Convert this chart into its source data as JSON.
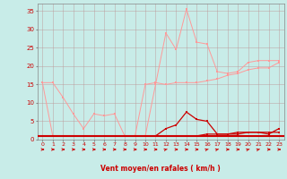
{
  "x": [
    0,
    1,
    2,
    3,
    4,
    5,
    6,
    7,
    8,
    9,
    10,
    11,
    12,
    13,
    14,
    15,
    16,
    17,
    18,
    19,
    20,
    21,
    22,
    23
  ],
  "background_color": "#c8ece8",
  "grid_color": "#bb9999",
  "xlabel": "Vent moyen/en rafales ( km/h )",
  "xlabel_color": "#cc0000",
  "yticks": [
    0,
    5,
    10,
    15,
    20,
    25,
    30,
    35
  ],
  "ylim": [
    0,
    37
  ],
  "xlim": [
    -0.5,
    23.5
  ],
  "line1_color": "#ff9999",
  "line2_color": "#ff9999",
  "line3_color": "#cc0000",
  "line4_color": "#cc0000",
  "arrow_color": "#cc0000",
  "line1_y": [
    15.5,
    15.5,
    11.5,
    7,
    3,
    7,
    6.5,
    7,
    1,
    1,
    1,
    15,
    29,
    24.5,
    35.5,
    26.5,
    26,
    18.5,
    18,
    18.5,
    21,
    21.5,
    21.5,
    21.5
  ],
  "line2_y": [
    15.5,
    1,
    1,
    1,
    1,
    1,
    1,
    1,
    1,
    1,
    15,
    15.5,
    15,
    15.5,
    15.5,
    15.5,
    16,
    16.5,
    17.5,
    18,
    19,
    19.5,
    19.5,
    21
  ],
  "line3_y": [
    1,
    1,
    1,
    1,
    1,
    1,
    1,
    1,
    1,
    1,
    1,
    1,
    3,
    4,
    7.5,
    5.5,
    5,
    1.5,
    1.5,
    2,
    2,
    2,
    1.5,
    3
  ],
  "line4_y": [
    1,
    1,
    1,
    1,
    1,
    1,
    1,
    1,
    1,
    1,
    1,
    1,
    1,
    1,
    1,
    1,
    1.5,
    1.5,
    1.5,
    1.5,
    2,
    2,
    2,
    2
  ],
  "arrow_angles": [
    0,
    0,
    0,
    0,
    0,
    0,
    0,
    0,
    0,
    0,
    0,
    0,
    45,
    0,
    0,
    0,
    45,
    45,
    0,
    0,
    45,
    45,
    0,
    0
  ]
}
